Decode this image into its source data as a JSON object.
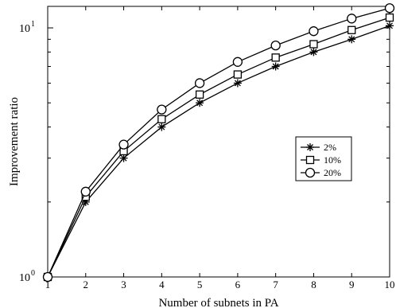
{
  "chart_data": {
    "type": "line",
    "title": "",
    "xlabel": "Number of subnets in PA",
    "ylabel": "Improvement ratio",
    "x": [
      1,
      2,
      3,
      4,
      5,
      6,
      7,
      8,
      9,
      10
    ],
    "xlim": [
      1,
      10
    ],
    "ylim": [
      1,
      12.2
    ],
    "yscale": "log",
    "x_tick_labels": [
      "1",
      "2",
      "3",
      "4",
      "5",
      "6",
      "7",
      "8",
      "9",
      "10"
    ],
    "y_tick_labels": [
      {
        "base": "10",
        "exp": "0",
        "value": 1
      },
      {
        "base": "10",
        "exp": "1",
        "value": 10
      }
    ],
    "grid": false,
    "legend_position": "right",
    "series": [
      {
        "name": "2%",
        "marker": "star",
        "values": [
          1,
          2.0,
          3.0,
          4.0,
          5.0,
          6.0,
          7.0,
          8.0,
          9.0,
          10.2
        ]
      },
      {
        "name": "10%",
        "marker": "square",
        "values": [
          1,
          2.1,
          3.2,
          4.3,
          5.4,
          6.5,
          7.6,
          8.6,
          9.8,
          11.0
        ]
      },
      {
        "name": "20%",
        "marker": "circle",
        "values": [
          1,
          2.2,
          3.4,
          4.7,
          6.0,
          7.3,
          8.5,
          9.7,
          10.9,
          12.0
        ]
      }
    ],
    "colors": {
      "line": "#000000",
      "background": "#ffffff"
    }
  }
}
